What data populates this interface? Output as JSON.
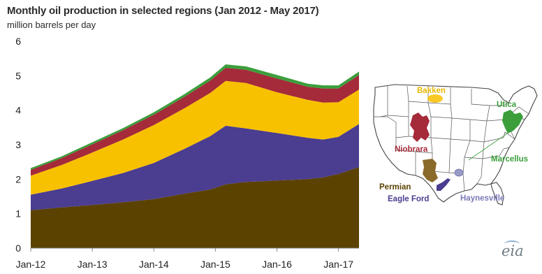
{
  "title": "Monthly oil production in selected regions (Jan 2012 - May 2017)",
  "subtitle": "million barrels per day",
  "chart_data": {
    "type": "area",
    "stacked": true,
    "title": "Monthly oil production in selected regions (Jan 2012 - May 2017)",
    "ylabel": "million barrels per day",
    "xlabel": "",
    "ylim": [
      0,
      6
    ],
    "yticks": [
      0,
      1,
      2,
      3,
      4,
      5,
      6
    ],
    "grid": false,
    "x": [
      "2012-01",
      "2012-07",
      "2013-01",
      "2013-07",
      "2014-01",
      "2014-07",
      "2014-12",
      "2015-03",
      "2015-07",
      "2016-01",
      "2016-07",
      "2016-10",
      "2017-01",
      "2017-05"
    ],
    "xtick_labels": [
      "Jan-12",
      "Jan-13",
      "Jan-14",
      "Jan-15",
      "Jan-16",
      "Jan-17"
    ],
    "series": [
      {
        "color": "#5b4200",
        "values": [
          1.1,
          1.18,
          1.25,
          1.33,
          1.42,
          1.58,
          1.7,
          1.85,
          1.92,
          1.96,
          2.0,
          2.05,
          2.15,
          2.35
        ]
      },
      {
        "color": "#4b3d8f",
        "values": [
          0.45,
          0.55,
          0.7,
          0.85,
          1.05,
          1.3,
          1.55,
          1.7,
          1.55,
          1.38,
          1.2,
          1.1,
          1.08,
          1.25
        ]
      },
      {
        "color": "#f8c100",
        "values": [
          0.55,
          0.68,
          0.82,
          0.97,
          1.1,
          1.18,
          1.25,
          1.3,
          1.32,
          1.18,
          1.1,
          1.07,
          1.0,
          1.0
        ]
      },
      {
        "color": "#a52a3a",
        "values": [
          0.17,
          0.2,
          0.24,
          0.27,
          0.3,
          0.33,
          0.36,
          0.38,
          0.38,
          0.4,
          0.38,
          0.41,
          0.4,
          0.42
        ]
      },
      {
        "color": "#3b9e3b",
        "values": [
          0.05,
          0.05,
          0.06,
          0.06,
          0.07,
          0.08,
          0.09,
          0.1,
          0.1,
          0.1,
          0.09,
          0.09,
          0.09,
          0.1
        ]
      }
    ]
  },
  "map": {
    "labels": {
      "bakken": "Bakken",
      "utica": "Utica",
      "niobrara": "Niobrara",
      "marcellus": "Marcellus",
      "permian": "Permian",
      "haynesville": "Haynesville",
      "eagle_ford": "Eagle Ford"
    },
    "label_colors": {
      "bakken": "#e8b800",
      "utica": "#3b9e3b",
      "niobrara": "#a52a3a",
      "marcellus": "#3b9e3b",
      "permian": "#5b4200",
      "haynesville": "#7a7ab8",
      "eagle_ford": "#4b3d8f"
    }
  },
  "source": "eia"
}
